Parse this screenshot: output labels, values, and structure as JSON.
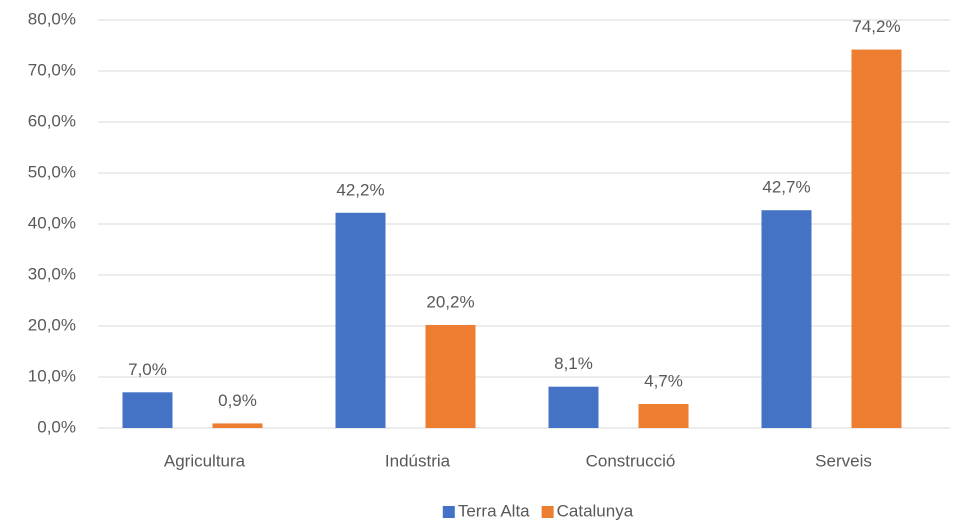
{
  "chart_data": {
    "type": "bar",
    "categories": [
      "Agricultura",
      "Indústria",
      "Construcció",
      "Serveis"
    ],
    "series": [
      {
        "name": "Terra Alta",
        "color": "#4472c4",
        "values": [
          7.0,
          42.2,
          8.1,
          42.7
        ],
        "value_labels": [
          "7,0%",
          "42,2%",
          "8,1%",
          "42,7%"
        ]
      },
      {
        "name": "Catalunya",
        "color": "#ed7d31",
        "values": [
          0.9,
          20.2,
          4.7,
          74.2
        ],
        "value_labels": [
          "0,9%",
          "20,2%",
          "4,7%",
          "74,2%"
        ]
      }
    ],
    "ylim": [
      0,
      80
    ],
    "yticks": [
      {
        "value": 0,
        "label": "0,0%"
      },
      {
        "value": 10,
        "label": "10,0%"
      },
      {
        "value": 20,
        "label": "20,0%"
      },
      {
        "value": 30,
        "label": "30,0%"
      },
      {
        "value": 40,
        "label": "40,0%"
      },
      {
        "value": 50,
        "label": "50,0%"
      },
      {
        "value": 60,
        "label": "60,0%"
      },
      {
        "value": 70,
        "label": "70,0%"
      },
      {
        "value": 80,
        "label": "80,0%"
      }
    ],
    "grid": true,
    "legend": "bottom"
  }
}
